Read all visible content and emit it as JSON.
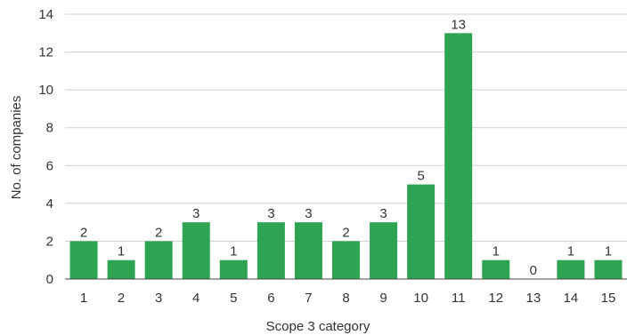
{
  "chart_data": {
    "type": "bar",
    "categories": [
      "1",
      "2",
      "3",
      "4",
      "5",
      "6",
      "7",
      "8",
      "9",
      "10",
      "11",
      "12",
      "13",
      "14",
      "15"
    ],
    "values": [
      2,
      1,
      2,
      3,
      1,
      3,
      3,
      2,
      3,
      5,
      13,
      1,
      0,
      1,
      1
    ],
    "data_labels": [
      "2",
      "1",
      "2",
      "3",
      "1",
      "3",
      "3",
      "2",
      "3",
      "5",
      "13",
      "1",
      "0",
      "1",
      "1"
    ],
    "xlabel": "Scope 3 category",
    "ylabel": "No. of companies",
    "ylim": [
      0,
      14
    ],
    "yticks": [
      "0",
      "2",
      "4",
      "6",
      "8",
      "10",
      "12",
      "14"
    ],
    "grid": true,
    "colors": {
      "bar": "#2ea453",
      "grid": "#cfcfcf",
      "axis": "#444444",
      "text": "#333333"
    }
  }
}
